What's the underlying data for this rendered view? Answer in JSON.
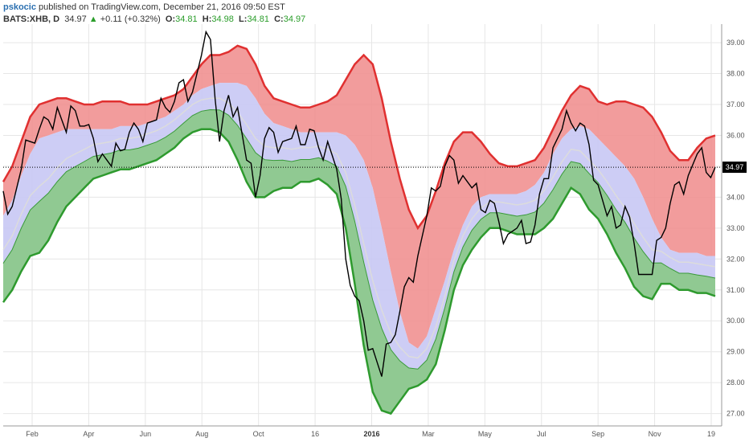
{
  "header": {
    "username": "pskocic",
    "published_text": " published on TradingView.com, December 21, 2016 09:50 EST",
    "symbol": "BATS:XHB, D",
    "last": "34.97",
    "up_arrow": "▲",
    "change": "+0.11 (+0.32%)",
    "open_label": "O:",
    "open": "34.81",
    "high_label": "H:",
    "high": "34.98",
    "low_label": "L:",
    "low": "34.81",
    "close_label": "C:",
    "close": "34.97"
  },
  "price_label": "34.97",
  "chart_data": {
    "type": "line",
    "y_ticks": [
      "27.00",
      "28.00",
      "29.00",
      "30.00",
      "31.00",
      "32.00",
      "33.00",
      "34.00",
      "35.00",
      "36.00",
      "37.00",
      "38.00",
      "39.00"
    ],
    "ylim": [
      26.6,
      39.6
    ],
    "x_ticks": [
      {
        "label": "Feb",
        "bold": false
      },
      {
        "label": "Apr",
        "bold": false
      },
      {
        "label": "Jun",
        "bold": false
      },
      {
        "label": "Aug",
        "bold": false
      },
      {
        "label": "Oct",
        "bold": false
      },
      {
        "label": "16",
        "bold": false
      },
      {
        "label": "2016",
        "bold": true
      },
      {
        "label": "Mar",
        "bold": false
      },
      {
        "label": "May",
        "bold": false
      },
      {
        "label": "Jul",
        "bold": false
      },
      {
        "label": "Sep",
        "bold": false
      },
      {
        "label": "Nov",
        "bold": false
      },
      {
        "label": "19",
        "bold": false
      }
    ],
    "colors": {
      "upper": "#f08b8b",
      "mid": "#c8c8f4",
      "lower": "#8cc88c",
      "upper_line": "#e03030",
      "lower_line": "#2e9a2e",
      "price": "#000000",
      "midline": "#dcdcdc"
    },
    "upper_band": [
      34.5,
      35.0,
      35.8,
      36.6,
      37.0,
      37.1,
      37.2,
      37.2,
      37.1,
      37.0,
      37.0,
      37.1,
      37.1,
      37.1,
      37.0,
      37.0,
      37.0,
      37.1,
      37.2,
      37.3,
      37.5,
      37.9,
      38.3,
      38.6,
      38.6,
      38.7,
      38.9,
      38.8,
      38.3,
      37.6,
      37.2,
      37.1,
      37.0,
      36.9,
      36.9,
      37.0,
      37.1,
      37.3,
      37.8,
      38.3,
      38.6,
      38.3,
      37.2,
      35.8,
      34.6,
      33.6,
      33.0,
      33.4,
      34.2,
      35.1,
      35.8,
      36.1,
      36.1,
      35.8,
      35.4,
      35.1,
      35.0,
      35.0,
      35.1,
      35.2,
      35.6,
      36.2,
      36.8,
      37.3,
      37.6,
      37.5,
      37.1,
      37.0,
      37.1,
      37.1,
      37.0,
      36.9,
      36.6,
      36.1,
      35.5,
      35.2,
      35.2,
      35.6,
      35.9,
      36.0
    ],
    "mid_band": [
      33.4,
      33.9,
      34.7,
      35.4,
      35.9,
      36.0,
      36.1,
      36.2,
      36.2,
      36.2,
      36.2,
      36.2,
      36.2,
      36.3,
      36.3,
      36.3,
      36.4,
      36.5,
      36.6,
      36.8,
      37.0,
      37.3,
      37.5,
      37.6,
      37.7,
      37.7,
      37.7,
      37.6,
      37.2,
      36.7,
      36.4,
      36.3,
      36.2,
      36.1,
      36.1,
      36.1,
      36.1,
      36.1,
      36.0,
      35.7,
      35.2,
      34.3,
      33.0,
      31.6,
      30.3,
      29.3,
      29.1,
      29.5,
      30.4,
      31.3,
      32.3,
      33.1,
      33.7,
      34.0,
      34.1,
      34.1,
      34.1,
      34.1,
      34.2,
      34.4,
      34.8,
      35.4,
      35.9,
      36.2,
      36.3,
      36.2,
      35.9,
      35.6,
      35.3,
      35.0,
      34.6,
      34.0,
      33.3,
      32.7,
      32.3,
      32.2,
      32.2,
      32.2,
      32.1,
      32.1
    ],
    "lower_band": [
      30.6,
      31.0,
      31.6,
      32.1,
      32.2,
      32.6,
      33.2,
      33.7,
      34.0,
      34.3,
      34.6,
      34.7,
      34.8,
      34.9,
      34.9,
      35.0,
      35.1,
      35.2,
      35.4,
      35.6,
      35.9,
      36.1,
      36.2,
      36.2,
      36.1,
      35.8,
      35.2,
      34.5,
      34.0,
      34.0,
      34.2,
      34.3,
      34.3,
      34.5,
      34.5,
      34.6,
      34.4,
      34.1,
      33.0,
      31.2,
      29.2,
      27.7,
      27.1,
      27.0,
      27.4,
      27.8,
      27.9,
      28.1,
      28.6,
      29.7,
      31.0,
      31.8,
      32.3,
      32.7,
      33.0,
      33.0,
      32.9,
      32.8,
      32.8,
      32.8,
      33.0,
      33.3,
      33.8,
      34.3,
      34.1,
      33.6,
      33.3,
      32.8,
      32.2,
      31.7,
      31.1,
      30.8,
      30.7,
      31.2,
      31.2,
      31.0,
      31.0,
      30.9,
      30.9,
      30.8
    ],
    "price": [
      34.2,
      33.7,
      34.9,
      35.8,
      36.2,
      36.5,
      36.9,
      36.1,
      36.8,
      36.3,
      35.9,
      35.4,
      35.0,
      35.5,
      36.1,
      36.2,
      36.4,
      36.5,
      36.9,
      37.1,
      37.8,
      37.4,
      38.6,
      39.1,
      35.8,
      37.3,
      36.9,
      35.2,
      34.0,
      35.9,
      36.1,
      35.8,
      35.9,
      35.7,
      36.2,
      35.6,
      35.8,
      34.9,
      32.0,
      30.8,
      30.0,
      29.1,
      28.2,
      29.3,
      30.3,
      31.4,
      32.1,
      33.4,
      34.2,
      35.0,
      35.2,
      34.7,
      34.3,
      33.6,
      33.9,
      33.2,
      32.8,
      33.0,
      32.5,
      33.1,
      34.6,
      35.6,
      36.2,
      36.4,
      36.4,
      35.7,
      34.4,
      33.4,
      33.0,
      33.7,
      32.5,
      31.5,
      31.5,
      32.7,
      33.8,
      34.5,
      34.7,
      35.4,
      34.8,
      34.97
    ]
  }
}
